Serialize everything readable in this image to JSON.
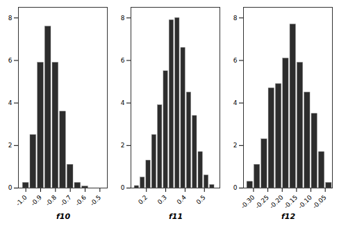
{
  "chart_data": [
    {
      "type": "histogram",
      "xlabel": "f10",
      "color": "#2d2d2d",
      "xlim": [
        -1.05,
        -0.45
      ],
      "ylim": [
        0,
        8.5
      ],
      "yticks": [
        0,
        2,
        4,
        6,
        8
      ],
      "xticks": [
        {
          "value": -1.0,
          "label": "-1.0"
        },
        -0.9,
        -0.8,
        -0.7,
        -0.6,
        -0.5
      ],
      "bins": [
        -1.025,
        -0.975,
        -0.925,
        -0.875,
        -0.825,
        -0.775,
        -0.725,
        -0.675,
        -0.625,
        -0.575,
        -0.525
      ],
      "values": [
        0.25,
        2.5,
        5.9,
        7.6,
        5.9,
        3.6,
        1.1,
        0.25,
        0.08,
        0.0
      ]
    },
    {
      "type": "histogram",
      "xlabel": "f11",
      "color": "#2d2d2d",
      "xlim": [
        0.12,
        0.58
      ],
      "ylim": [
        0,
        8.5
      ],
      "yticks": [
        0,
        2,
        4,
        6,
        8
      ],
      "xticks": [
        0.2,
        0.3,
        0.4,
        0.5
      ],
      "bins": [
        0.135,
        0.165,
        0.195,
        0.225,
        0.255,
        0.285,
        0.315,
        0.345,
        0.375,
        0.405,
        0.435,
        0.465,
        0.495,
        0.525,
        0.555
      ],
      "values": [
        0.1,
        0.5,
        1.3,
        2.5,
        3.9,
        5.5,
        7.9,
        8.0,
        6.6,
        4.5,
        3.4,
        1.7,
        0.6,
        0.15
      ]
    },
    {
      "type": "histogram",
      "xlabel": "f12",
      "color": "#2d2d2d",
      "xlim": [
        -0.335,
        -0.025
      ],
      "ylim": [
        0,
        8.5
      ],
      "yticks": [
        0,
        2,
        4,
        6,
        8
      ],
      "xticks": [
        {
          "value": -0.3,
          "label": "-0.30"
        },
        -0.25,
        {
          "value": -0.2,
          "label": "-0.20"
        },
        -0.15,
        {
          "value": -0.1,
          "label": "-0.10"
        },
        -0.05
      ],
      "bins": [
        -0.325,
        -0.3,
        -0.275,
        -0.25,
        -0.225,
        -0.2,
        -0.175,
        -0.15,
        -0.125,
        -0.1,
        -0.075,
        -0.05,
        -0.025
      ],
      "values": [
        0.3,
        1.1,
        2.3,
        4.7,
        4.9,
        6.1,
        7.7,
        5.9,
        4.5,
        3.5,
        1.7,
        0.25
      ]
    }
  ]
}
